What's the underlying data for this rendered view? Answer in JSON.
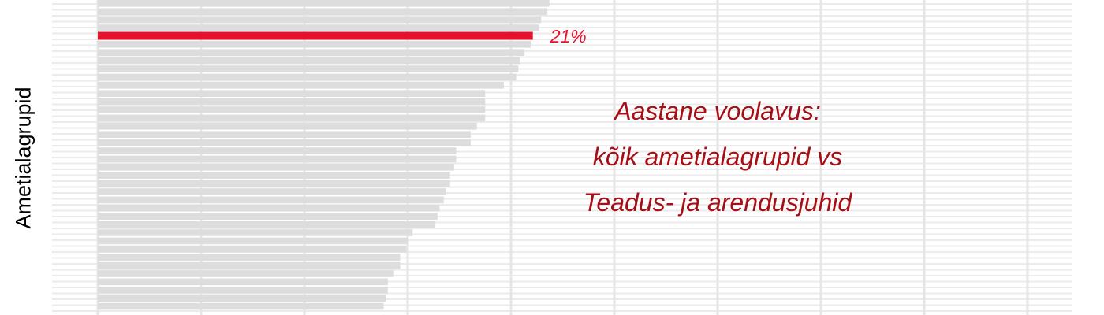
{
  "chart_data": {
    "type": "bar",
    "orientation": "horizontal",
    "ylabel": "Ametialagrupid",
    "annotation": [
      "Aastane voolavus:",
      "kõik ametialagrupid vs",
      "Teadus- ja arendusjuhid"
    ],
    "highlight": {
      "value": 21,
      "label": "21%",
      "color": "#e8112d"
    },
    "bar_color": "#dddddd",
    "highlight_color": "#e8112d",
    "annotation_color": "#a50f15",
    "xlim": [
      0,
      48
    ],
    "values": [
      21.8,
      21.7,
      21.4,
      21.3,
      21.0,
      20.9,
      20.6,
      20.4,
      20.3,
      20.2,
      19.6,
      18.7,
      18.7,
      18.7,
      18.7,
      18.3,
      18.0,
      18.0,
      17.3,
      17.3,
      17.2,
      17.0,
      17.0,
      16.8,
      16.7,
      16.5,
      16.4,
      16.3,
      15.2,
      15.0,
      14.9,
      14.6,
      14.6,
      14.3,
      14.0,
      14.0,
      13.9,
      13.8
    ]
  }
}
